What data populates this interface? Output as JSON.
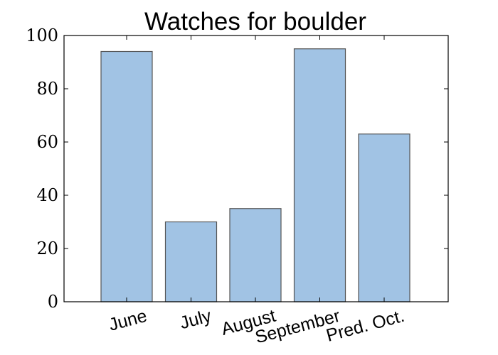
{
  "chart_data": {
    "type": "bar",
    "title": "Watches for boulder",
    "categories": [
      "June",
      "July",
      "August",
      "September",
      "Pred. Oct."
    ],
    "values": [
      94,
      30,
      35,
      95,
      63
    ],
    "ylim": [
      0,
      100
    ],
    "yticks": [
      0,
      20,
      40,
      60,
      80,
      100
    ],
    "ytick_labels": [
      "0",
      "20",
      "40",
      "60",
      "80",
      "100"
    ],
    "xlabel": "",
    "ylabel": "",
    "grid": false,
    "bar_color": "#a1c3e4"
  }
}
